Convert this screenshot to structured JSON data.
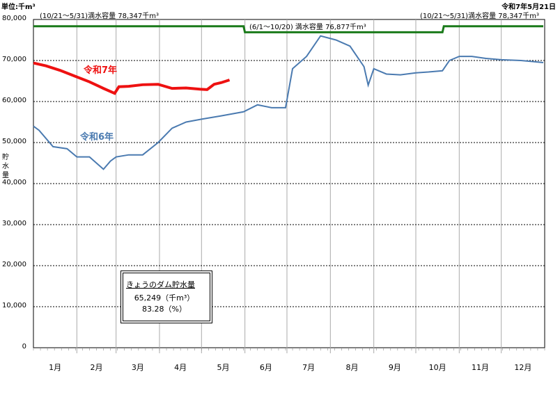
{
  "header": {
    "unit": "単位:千m³",
    "date": "令和7年5月21日",
    "capacity_left": "(10/21～5/31)満水容量 78,347千m³",
    "capacity_mid": "(6/1～10/20) 満水容量 76,877千m³",
    "capacity_right": "(10/21～5/31)満水容量 78,347千m³"
  },
  "info_box": {
    "title": "きょうのダム貯水量",
    "value": "65,249（千m³）",
    "percent": "83.28（%）"
  },
  "colors": {
    "r7": "#ee1111",
    "r6": "#4a7ab0",
    "capacity": "#1a7a1a",
    "grid": "#000000",
    "month_line": "#aaaaaa"
  },
  "chart_data": {
    "type": "line",
    "title": "",
    "xlabel": "",
    "ylabel": "貯水量",
    "ylim": [
      0,
      80000
    ],
    "y_ticks": [
      "0",
      "10,000",
      "20,000",
      "30,000",
      "40,000",
      "50,000",
      "60,000",
      "70,000",
      "80,000"
    ],
    "y_tick_values": [
      0,
      10000,
      20000,
      30000,
      40000,
      50000,
      60000,
      70000,
      80000
    ],
    "categories": [
      "1月",
      "2月",
      "3月",
      "4月",
      "5月",
      "6月",
      "7月",
      "8月",
      "9月",
      "10月",
      "11月",
      "12月"
    ],
    "grid": true,
    "capacity_line": {
      "x": [
        "1/1",
        "5/31",
        "6/1",
        "10/20",
        "10/21",
        "12/31"
      ],
      "y": [
        78347,
        78347,
        76877,
        76877,
        78347,
        78347
      ]
    },
    "series": [
      {
        "name": "令和7年",
        "x": [
          "1/1",
          "1/10",
          "1/20",
          "2/1",
          "2/10",
          "2/20",
          "2/28",
          "3/3",
          "3/10",
          "3/20",
          "3/31",
          "4/10",
          "4/20",
          "4/30",
          "5/5",
          "5/10",
          "5/15",
          "5/21"
        ],
        "values": [
          69400,
          68700,
          67600,
          66000,
          64800,
          63200,
          62000,
          63600,
          63700,
          64100,
          64200,
          63200,
          63300,
          63000,
          62900,
          64200,
          64600,
          65249
        ]
      },
      {
        "name": "令和6年",
        "x": [
          "1/1",
          "1/5",
          "1/15",
          "1/25",
          "2/1",
          "2/10",
          "2/20",
          "2/25",
          "3/1",
          "3/10",
          "3/20",
          "3/31",
          "4/10",
          "4/20",
          "5/1",
          "5/15",
          "5/31",
          "6/10",
          "6/20",
          "6/30",
          "7/5",
          "7/15",
          "7/25",
          "8/5",
          "8/15",
          "8/25",
          "8/28",
          "9/1",
          "9/10",
          "9/20",
          "10/1",
          "10/10",
          "10/20",
          "10/25",
          "11/1",
          "11/10",
          "11/20",
          "12/1",
          "12/15",
          "12/31"
        ],
        "values": [
          54000,
          53000,
          49000,
          48500,
          46500,
          46500,
          43500,
          45500,
          46500,
          47000,
          47000,
          50000,
          53500,
          55000,
          55700,
          56500,
          57500,
          59200,
          58500,
          58500,
          68000,
          71000,
          76000,
          75000,
          73500,
          68500,
          64000,
          68000,
          66700,
          66500,
          67000,
          67200,
          67500,
          70000,
          71000,
          71000,
          70500,
          70200,
          70000,
          69500
        ]
      }
    ]
  }
}
